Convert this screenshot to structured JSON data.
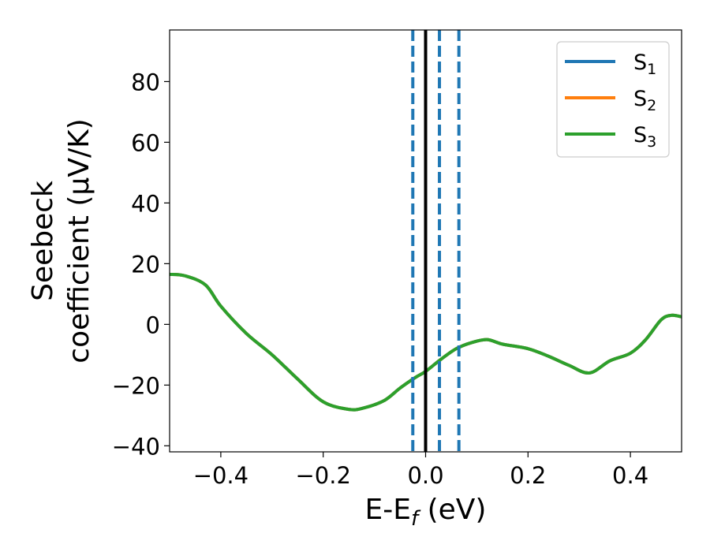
{
  "chart_data": {
    "type": "line",
    "xlabel": {
      "main": "E-E",
      "sub": "f",
      "suffix": " (eV)"
    },
    "ylabel": {
      "line1": "Seebeck",
      "line2": "coefficient  (μV/K)"
    },
    "xlim": [
      -0.5,
      0.5
    ],
    "ylim": [
      -42,
      97
    ],
    "xticks": [
      -0.4,
      -0.2,
      0.0,
      0.2,
      0.4
    ],
    "xtick_labels": [
      "−0.4",
      "−0.2",
      "0.0",
      "0.2",
      "0.4"
    ],
    "yticks": [
      -40,
      -20,
      0,
      20,
      40,
      60,
      80
    ],
    "ytick_labels": [
      "−40",
      "−20",
      "0",
      "20",
      "40",
      "60",
      "80"
    ],
    "grid": false,
    "legend_position": "top-right",
    "series": [
      {
        "name": "S",
        "sub": "1",
        "color": "#1f77b4"
      },
      {
        "name": "S",
        "sub": "2",
        "color": "#ff7f0e"
      },
      {
        "name": "S",
        "sub": "3",
        "color": "#2ca02c"
      }
    ],
    "curve": {
      "x": [
        -0.5,
        -0.47,
        -0.43,
        -0.4,
        -0.35,
        -0.3,
        -0.25,
        -0.2,
        -0.15,
        -0.12,
        -0.08,
        -0.05,
        -0.02,
        0.0,
        0.03,
        0.06,
        0.09,
        0.12,
        0.15,
        0.2,
        0.24,
        0.28,
        0.32,
        0.36,
        0.4,
        0.43,
        0.46,
        0.48,
        0.5
      ],
      "y": [
        16.5,
        16.0,
        13.0,
        6.0,
        -3.0,
        -10.0,
        -18.0,
        -25.5,
        -28.0,
        -27.5,
        -25.0,
        -21.0,
        -17.5,
        -15.5,
        -11.5,
        -8.0,
        -6.0,
        -5.0,
        -6.5,
        -8.0,
        -10.5,
        -13.5,
        -16.0,
        -12.0,
        -9.5,
        -5.0,
        1.5,
        3.0,
        2.5
      ]
    },
    "vlines": [
      {
        "x": -0.025,
        "color": "#1f77b4",
        "style": "dashed"
      },
      {
        "x": 0.0,
        "color": "#000000",
        "style": "solid"
      },
      {
        "x": 0.027,
        "color": "#1f77b4",
        "style": "dashed"
      },
      {
        "x": 0.065,
        "color": "#1f77b4",
        "style": "dashed"
      }
    ]
  }
}
